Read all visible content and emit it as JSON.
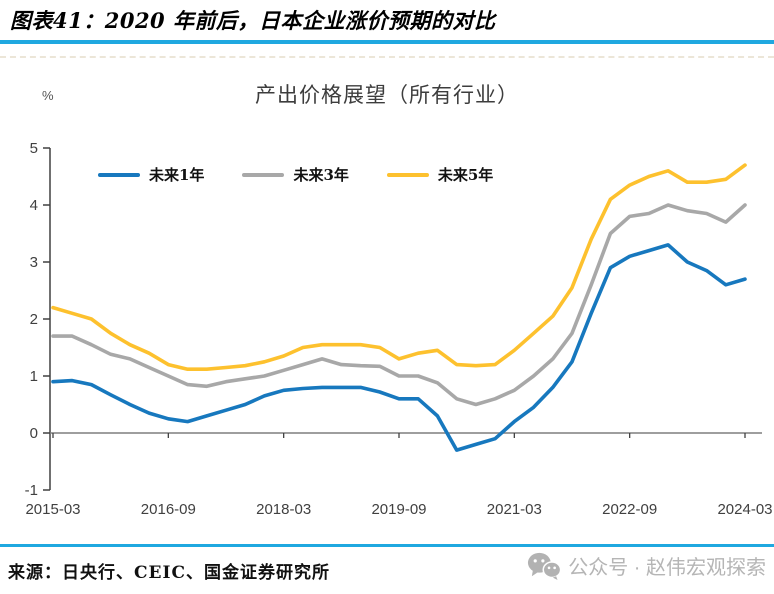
{
  "header": {
    "title": "图表41：2020 年前后，日本企业涨价预期的对比"
  },
  "chart": {
    "title": "产出价格展望（所有行业）",
    "unit_label": "%",
    "legend": [
      {
        "label": "未来1年",
        "color": "#1778be"
      },
      {
        "label": "未来3年",
        "color": "#a8a8a8"
      },
      {
        "label": "未来5年",
        "color": "#fdc12e"
      }
    ]
  },
  "chart_data": {
    "type": "line",
    "title": "产出价格展望（所有行业）",
    "xlabel": "",
    "ylabel": "%",
    "ylim": [
      -1,
      5
    ],
    "yticks": [
      -1,
      0,
      1,
      2,
      3,
      4,
      5
    ],
    "grid": false,
    "legend_position": "top-left",
    "x_tick_labels": [
      "2015-03",
      "2016-09",
      "2018-03",
      "2019-09",
      "2021-03",
      "2022-09",
      "2024-03"
    ],
    "x": [
      "2015-03",
      "2015-06",
      "2015-09",
      "2015-12",
      "2016-03",
      "2016-06",
      "2016-09",
      "2016-12",
      "2017-03",
      "2017-06",
      "2017-09",
      "2017-12",
      "2018-03",
      "2018-06",
      "2018-09",
      "2018-12",
      "2019-03",
      "2019-06",
      "2019-09",
      "2019-12",
      "2020-03",
      "2020-06",
      "2020-09",
      "2020-12",
      "2021-03",
      "2021-06",
      "2021-09",
      "2021-12",
      "2022-03",
      "2022-06",
      "2022-09",
      "2022-12",
      "2023-03",
      "2023-06",
      "2023-09",
      "2023-12",
      "2024-03"
    ],
    "series": [
      {
        "name": "未来1年",
        "color": "#1778be",
        "values": [
          0.9,
          0.92,
          0.85,
          0.67,
          0.5,
          0.35,
          0.25,
          0.2,
          0.3,
          0.4,
          0.5,
          0.65,
          0.75,
          0.78,
          0.8,
          0.8,
          0.8,
          0.72,
          0.6,
          0.6,
          0.3,
          -0.3,
          -0.2,
          -0.1,
          0.2,
          0.45,
          0.8,
          1.25,
          2.1,
          2.9,
          3.1,
          3.2,
          3.3,
          3.0,
          2.85,
          2.6,
          2.7
        ]
      },
      {
        "name": "未来3年",
        "color": "#a8a8a8",
        "values": [
          1.7,
          1.7,
          1.55,
          1.38,
          1.3,
          1.15,
          1.0,
          0.85,
          0.82,
          0.9,
          0.95,
          1.0,
          1.1,
          1.2,
          1.3,
          1.2,
          1.18,
          1.17,
          1.0,
          1.0,
          0.88,
          0.6,
          0.5,
          0.6,
          0.75,
          1.0,
          1.3,
          1.75,
          2.6,
          3.5,
          3.8,
          3.85,
          4.0,
          3.9,
          3.85,
          3.7,
          4.0
        ]
      },
      {
        "name": "未来5年",
        "color": "#fdc12e",
        "values": [
          2.2,
          2.1,
          2.0,
          1.75,
          1.55,
          1.4,
          1.2,
          1.12,
          1.12,
          1.15,
          1.18,
          1.25,
          1.35,
          1.5,
          1.55,
          1.55,
          1.55,
          1.5,
          1.3,
          1.4,
          1.45,
          1.2,
          1.18,
          1.2,
          1.45,
          1.75,
          2.05,
          2.55,
          3.4,
          4.1,
          4.35,
          4.5,
          4.6,
          4.4,
          4.4,
          4.45,
          4.7
        ]
      }
    ]
  },
  "footer": {
    "source": "来源：日央行、CEIC、国金证券研究所",
    "watermark": "公众号 · 赵伟宏观探索"
  },
  "colors": {
    "rule": "#1fa8e0",
    "axis": "#404040",
    "zero_line": "#7f7f7f"
  }
}
